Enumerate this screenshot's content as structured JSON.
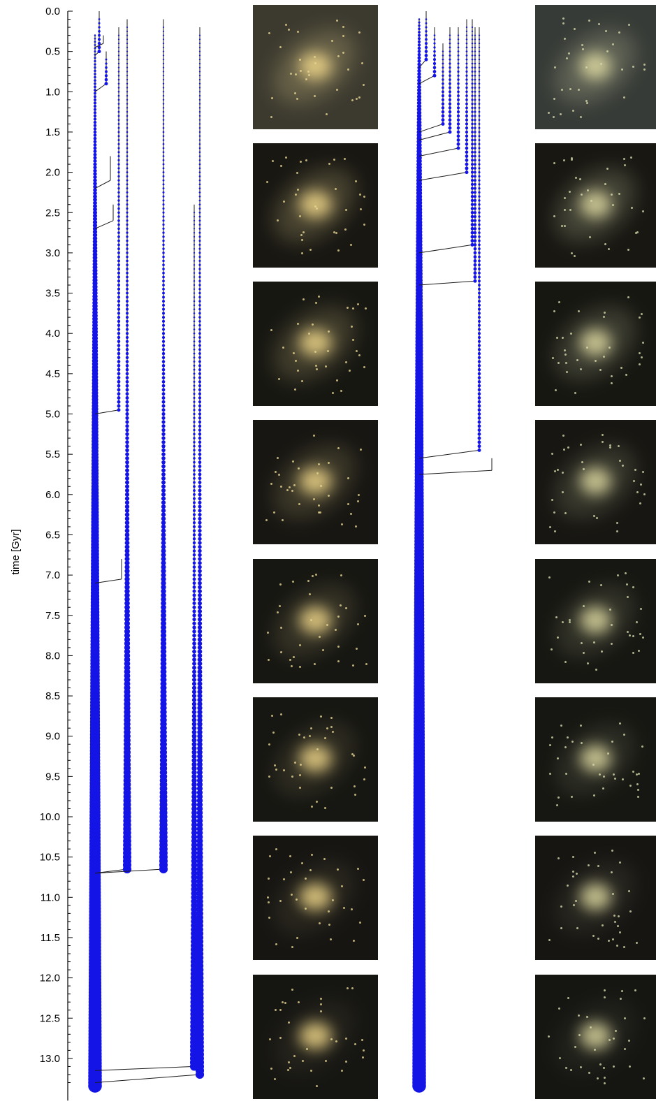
{
  "figure": {
    "yaxis": {
      "label": "time [Gyr]",
      "min": 0.0,
      "max": 13.35,
      "ticks": [
        "0.0",
        "0.5",
        "1.0",
        "1.5",
        "2.0",
        "2.5",
        "3.0",
        "3.5",
        "4.0",
        "4.5",
        "5.0",
        "5.5",
        "6.0",
        "6.5",
        "7.0",
        "7.5",
        "8.0",
        "8.5",
        "9.0",
        "9.5",
        "10.0",
        "10.5",
        "11.0",
        "11.5",
        "12.0",
        "12.5",
        "13.0"
      ]
    },
    "colors": {
      "node": "#1414e6",
      "branch": "#1c1c1c",
      "background": "#ffffff"
    },
    "merger_trees": [
      {
        "name": "left-tree",
        "main_branch": {
          "start": 0.3,
          "end": 13.35
        },
        "progenitors": [
          {
            "start": 0.0,
            "end": 0.5,
            "merge": 0.55
          },
          {
            "start": 0.3,
            "end": 0.4,
            "merge": 0.45
          },
          {
            "start": 0.5,
            "end": 0.9,
            "merge": 1.0
          },
          {
            "start": 1.8,
            "end": 2.1,
            "merge": 2.2
          },
          {
            "start": 2.4,
            "end": 2.6,
            "merge": 2.7
          },
          {
            "start": 0.2,
            "end": 4.95,
            "merge": 5.0
          },
          {
            "start": 6.8,
            "end": 7.05,
            "merge": 7.1
          },
          {
            "start": 0.1,
            "end": 10.65,
            "merge": 10.7
          },
          {
            "start": 0.1,
            "end": 10.65,
            "merge": 10.7
          },
          {
            "start": 2.4,
            "end": 13.1,
            "merge": 13.15
          },
          {
            "start": 0.2,
            "end": 13.2,
            "merge": 13.3
          }
        ]
      },
      {
        "name": "right-tree",
        "main_branch": {
          "start": 0.1,
          "end": 13.35
        },
        "progenitors": [
          {
            "start": 0.0,
            "end": 0.6,
            "merge": 0.7
          },
          {
            "start": 0.2,
            "end": 0.8,
            "merge": 0.9
          },
          {
            "start": 0.4,
            "end": 1.4,
            "merge": 1.5
          },
          {
            "start": 0.2,
            "end": 1.5,
            "merge": 1.6
          },
          {
            "start": 0.2,
            "end": 1.7,
            "merge": 1.8
          },
          {
            "start": 0.1,
            "end": 2.0,
            "merge": 2.1
          },
          {
            "start": 0.1,
            "end": 2.9,
            "merge": 3.0
          },
          {
            "start": 0.2,
            "end": 3.35,
            "merge": 3.4
          },
          {
            "start": 0.2,
            "end": 5.45,
            "merge": 5.55
          },
          {
            "start": 5.55,
            "end": 5.7,
            "merge": 5.75
          }
        ]
      }
    ],
    "image_panels": [
      {
        "name": "left-column",
        "count": 8
      },
      {
        "name": "right-column",
        "count": 8
      }
    ]
  }
}
